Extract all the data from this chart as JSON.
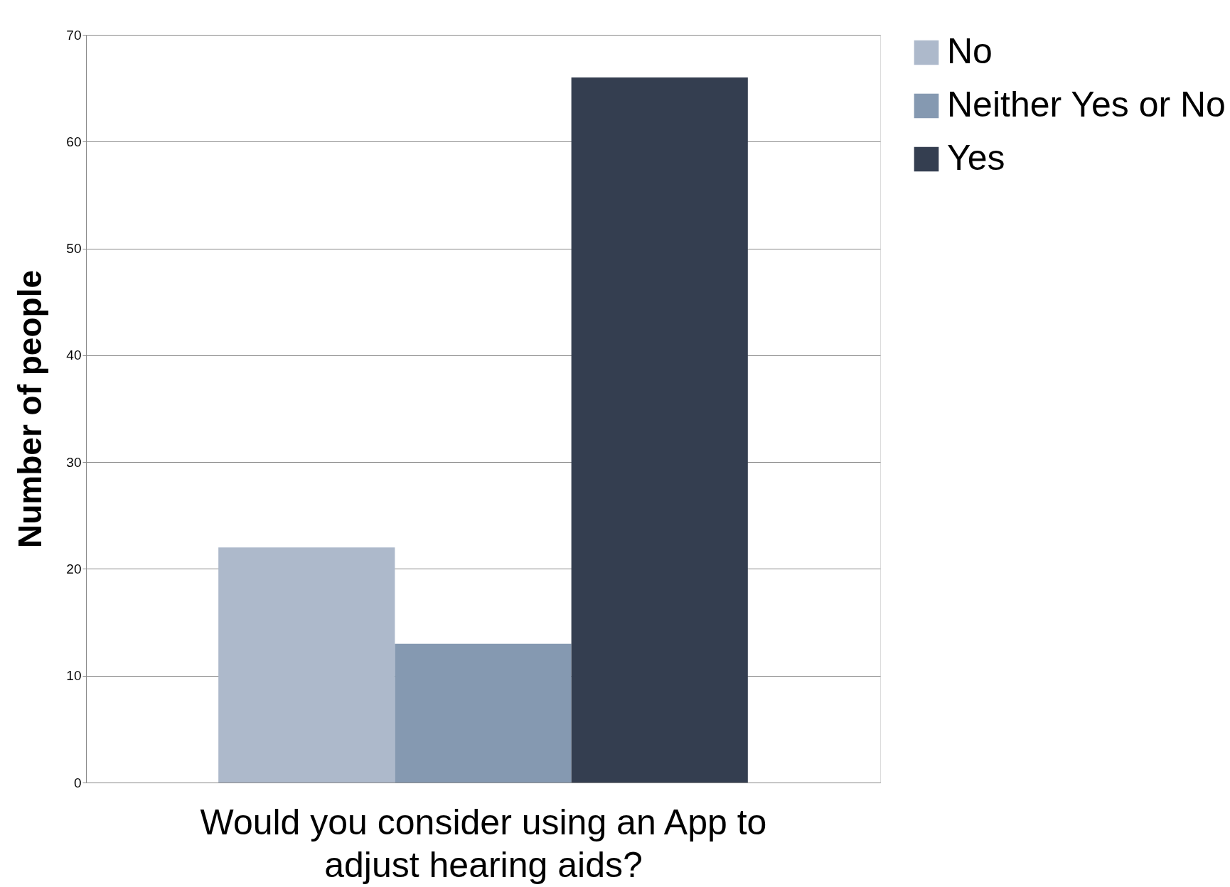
{
  "chart_data": {
    "type": "bar",
    "xlabel": "Would you consider using an App to adjust hearing aids?",
    "ylabel": "Number of people",
    "categories": [
      null
    ],
    "series": [
      {
        "name": "No",
        "color": "#adb9cb",
        "values": [
          22
        ]
      },
      {
        "name": "Neither Yes or No",
        "color": "#8599b1",
        "values": [
          13
        ]
      },
      {
        "name": "Yes",
        "color": "#343e50",
        "values": [
          66
        ]
      }
    ],
    "ylim": [
      0,
      70
    ],
    "yticks": [
      0,
      10,
      20,
      30,
      40,
      50,
      60,
      70
    ],
    "grid": "y",
    "legend": "right"
  }
}
